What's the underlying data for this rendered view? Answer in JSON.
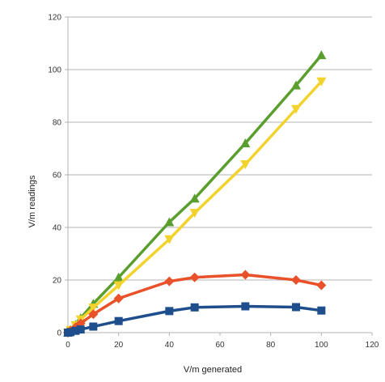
{
  "chart_data": {
    "type": "scatter",
    "xlabel": "V/m generated",
    "ylabel": "V/m readings",
    "xlim": [
      0,
      120
    ],
    "ylim": [
      0,
      120
    ],
    "x_ticks": [
      0,
      20,
      40,
      60,
      80,
      100,
      120
    ],
    "y_ticks": [
      0,
      20,
      40,
      60,
      80,
      100,
      120
    ],
    "grid": "horizontal",
    "legend": "none",
    "series": [
      {
        "color": "#5a9e2e",
        "marker": "triangle-up",
        "points": [
          [
            0,
            0
          ],
          [
            1,
            1
          ],
          [
            3,
            3
          ],
          [
            5,
            5.5
          ],
          [
            10,
            11
          ],
          [
            20,
            21
          ],
          [
            40,
            42
          ],
          [
            50,
            51
          ],
          [
            70,
            72
          ],
          [
            90,
            94
          ],
          [
            100,
            105.5
          ]
        ]
      },
      {
        "color": "#f2d22c",
        "marker": "triangle-down",
        "points": [
          [
            0,
            0
          ],
          [
            1,
            1
          ],
          [
            3,
            2.8
          ],
          [
            5,
            5
          ],
          [
            10,
            9.5
          ],
          [
            20,
            18
          ],
          [
            40,
            35.5
          ],
          [
            50,
            45.5
          ],
          [
            70,
            64
          ],
          [
            90,
            85
          ],
          [
            100,
            95.5
          ]
        ]
      },
      {
        "color": "#e8512a",
        "marker": "diamond",
        "points": [
          [
            0,
            0
          ],
          [
            1,
            0.7
          ],
          [
            3,
            2
          ],
          [
            5,
            3.5
          ],
          [
            10,
            7
          ],
          [
            20,
            13
          ],
          [
            40,
            19.5
          ],
          [
            50,
            21
          ],
          [
            70,
            22
          ],
          [
            90,
            20
          ],
          [
            100,
            18
          ]
        ]
      },
      {
        "color": "#1f4e8c",
        "marker": "square",
        "points": [
          [
            0,
            0
          ],
          [
            1,
            0.2
          ],
          [
            3,
            0.7
          ],
          [
            5,
            1.2
          ],
          [
            10,
            2.3
          ],
          [
            20,
            4.4
          ],
          [
            40,
            8.2
          ],
          [
            50,
            9.6
          ],
          [
            70,
            10
          ],
          [
            90,
            9.7
          ],
          [
            100,
            8.4
          ]
        ]
      }
    ]
  }
}
